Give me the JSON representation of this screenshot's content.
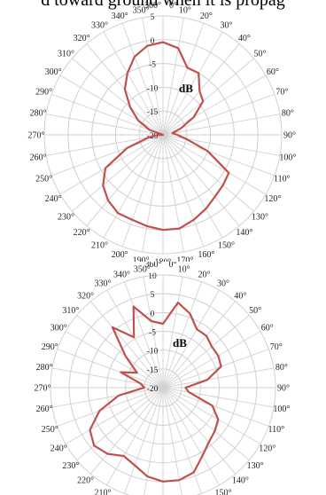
{
  "caption": "d toward ground when it is propag",
  "chart_data": [
    {
      "type": "line",
      "subtype": "polar",
      "unit_label": "dB",
      "radial_ticks": [
        5,
        0,
        -5,
        -10,
        -15,
        -20
      ],
      "rlim": [
        -20,
        5
      ],
      "angle_ticks": [
        "0°",
        "10°",
        "20°",
        "30°",
        "40°",
        "50°",
        "60°",
        "70°",
        "80°",
        "90°",
        "100°",
        "110°",
        "120°",
        "130°",
        "140°",
        "150°",
        "160°",
        "170°",
        "180°",
        "190°",
        "200°",
        "210°",
        "220°",
        "230°",
        "240°",
        "250°",
        "260°",
        "270°",
        "280°",
        "290°",
        "300°",
        "310°",
        "320°",
        "330°",
        "340°",
        "350°",
        "360°"
      ],
      "series": [
        {
          "color": "#c0504d",
          "angles": [
            0,
            10,
            20,
            30,
            40,
            50,
            60,
            70,
            80,
            90,
            100,
            110,
            120,
            130,
            140,
            150,
            160,
            170,
            180,
            190,
            200,
            210,
            220,
            230,
            240,
            250,
            260,
            270,
            280,
            290,
            300,
            310,
            320,
            330,
            340,
            350
          ],
          "values": [
            -0.5,
            -1.5,
            -5,
            -5,
            -8,
            -9,
            -12.5,
            -16,
            -18,
            -17,
            -15,
            -10,
            -4,
            -3.5,
            -3,
            -2,
            -1,
            0,
            0,
            -0.5,
            -1,
            -1,
            -2,
            -3.5,
            -6,
            -12,
            -17,
            -19,
            -20,
            -17,
            -14,
            -11,
            -7.5,
            -5,
            -2.5,
            -1
          ]
        }
      ]
    },
    {
      "type": "line",
      "subtype": "polar",
      "unit_label": "dB",
      "radial_ticks": [
        10,
        5,
        0,
        -5,
        -10,
        -15,
        -20
      ],
      "rlim": [
        -20,
        10
      ],
      "angle_ticks": [
        "0°",
        "10°",
        "20°",
        "30°",
        "40°",
        "50°",
        "60°",
        "70°",
        "80°",
        "90°",
        "100°",
        "110°",
        "120°",
        "130°",
        "140°",
        "150°",
        "160°",
        "170°",
        "180°",
        "190°",
        "200°",
        "210°",
        "220°",
        "230°",
        "240°",
        "250°",
        "260°",
        "270°",
        "280°",
        "290°",
        "300°",
        "310°",
        "320°",
        "330°",
        "340°",
        "350°",
        "360°"
      ],
      "series": [
        {
          "color": "#c0504d",
          "angles": [
            0,
            10,
            20,
            30,
            40,
            50,
            60,
            70,
            80,
            90,
            100,
            110,
            120,
            130,
            140,
            150,
            160,
            170,
            180,
            190,
            200,
            210,
            220,
            230,
            240,
            250,
            260,
            270,
            280,
            290,
            300,
            310,
            320,
            330,
            340,
            350
          ],
          "values": [
            -3,
            3,
            1,
            -2,
            -2,
            -3,
            -3,
            -3.5,
            -8,
            -14,
            -13,
            -6,
            -3,
            -2,
            -1,
            1,
            4,
            5,
            5,
            4,
            2,
            1,
            3,
            4,
            2.5,
            -2,
            -8,
            -15,
            -14,
            -8,
            -12,
            -7,
            1,
            -4.5,
            3,
            -2
          ]
        }
      ]
    }
  ]
}
